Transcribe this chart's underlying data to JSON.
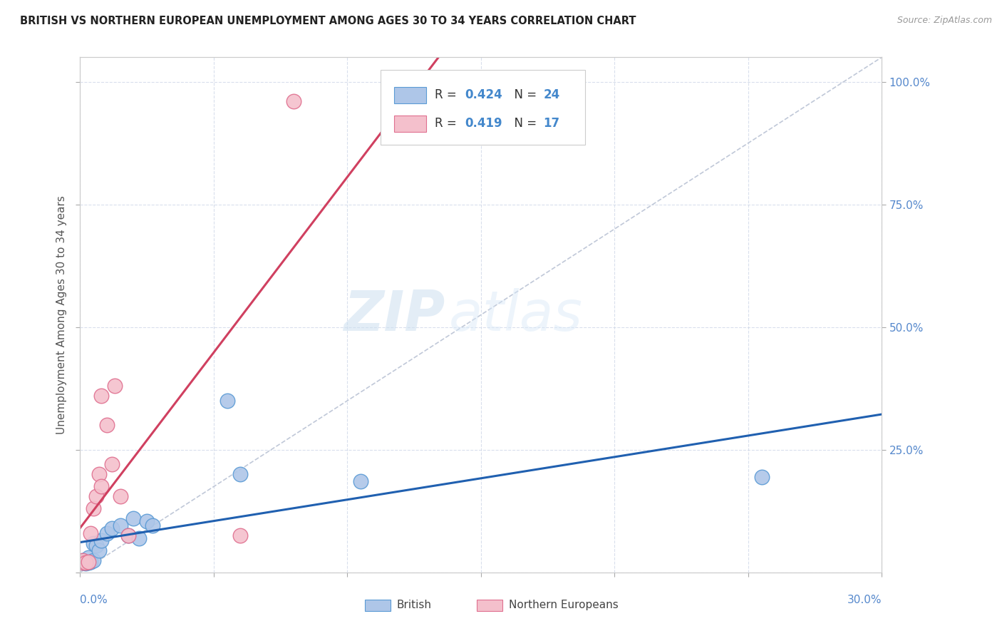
{
  "title": "BRITISH VS NORTHERN EUROPEAN UNEMPLOYMENT AMONG AGES 30 TO 34 YEARS CORRELATION CHART",
  "source": "Source: ZipAtlas.com",
  "ylabel": "Unemployment Among Ages 30 to 34 years",
  "right_yticks": [
    "100.0%",
    "75.0%",
    "50.0%",
    "25.0%"
  ],
  "right_ytick_vals": [
    1.0,
    0.75,
    0.5,
    0.25
  ],
  "watermark_zip": "ZIP",
  "watermark_atlas": "atlas",
  "british_color": "#aec6e8",
  "british_edge_color": "#5b9bd5",
  "northern_color": "#f4c0cc",
  "northern_edge_color": "#e07090",
  "british_line_color": "#2060b0",
  "northern_line_color": "#d04060",
  "diagonal_color": "#c0c8d8",
  "british_scatter": [
    [
      0.001,
      0.02
    ],
    [
      0.001,
      0.025
    ],
    [
      0.002,
      0.018
    ],
    [
      0.002,
      0.022
    ],
    [
      0.003,
      0.02
    ],
    [
      0.003,
      0.03
    ],
    [
      0.004,
      0.022
    ],
    [
      0.005,
      0.025
    ],
    [
      0.005,
      0.06
    ],
    [
      0.006,
      0.055
    ],
    [
      0.007,
      0.045
    ],
    [
      0.008,
      0.065
    ],
    [
      0.01,
      0.08
    ],
    [
      0.012,
      0.09
    ],
    [
      0.015,
      0.095
    ],
    [
      0.018,
      0.075
    ],
    [
      0.02,
      0.11
    ],
    [
      0.022,
      0.07
    ],
    [
      0.025,
      0.105
    ],
    [
      0.027,
      0.095
    ],
    [
      0.055,
      0.35
    ],
    [
      0.06,
      0.2
    ],
    [
      0.105,
      0.185
    ],
    [
      0.255,
      0.195
    ]
  ],
  "northern_scatter": [
    [
      0.001,
      0.02
    ],
    [
      0.001,
      0.025
    ],
    [
      0.002,
      0.02
    ],
    [
      0.003,
      0.022
    ],
    [
      0.004,
      0.08
    ],
    [
      0.005,
      0.13
    ],
    [
      0.006,
      0.155
    ],
    [
      0.007,
      0.2
    ],
    [
      0.008,
      0.175
    ],
    [
      0.008,
      0.36
    ],
    [
      0.01,
      0.3
    ],
    [
      0.012,
      0.22
    ],
    [
      0.013,
      0.38
    ],
    [
      0.015,
      0.155
    ],
    [
      0.018,
      0.075
    ],
    [
      0.06,
      0.075
    ],
    [
      0.08,
      0.96
    ]
  ],
  "xlim": [
    0.0,
    0.3
  ],
  "ylim": [
    0.0,
    1.05
  ],
  "xtick_positions": [
    0.0,
    0.05,
    0.1,
    0.15,
    0.2,
    0.25,
    0.3
  ],
  "ytick_positions": [
    0.0,
    0.25,
    0.5,
    0.75,
    1.0
  ]
}
